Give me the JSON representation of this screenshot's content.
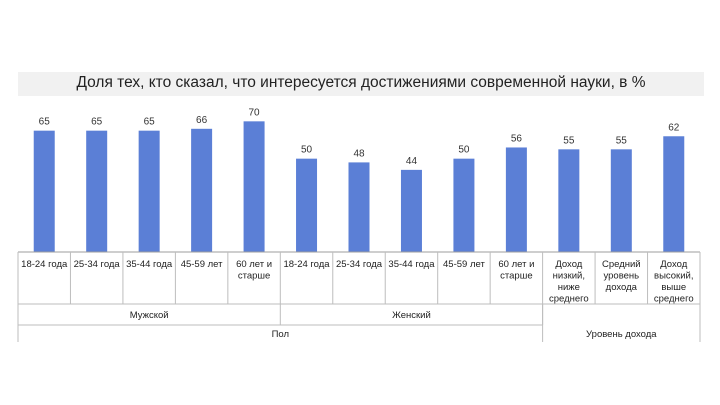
{
  "chart_data": {
    "type": "bar",
    "title": "Доля тех, кто сказал, что интересуется достижениями современной науки, в %",
    "categories": [
      [
        "18-24 года"
      ],
      [
        "25-34 года"
      ],
      [
        "35-44 года"
      ],
      [
        "45-59 лет"
      ],
      [
        "60 лет и",
        "старше"
      ],
      [
        "18-24 года"
      ],
      [
        "25-34 года"
      ],
      [
        "35-44 года"
      ],
      [
        "45-59 лет"
      ],
      [
        "60 лет и",
        "старше"
      ],
      [
        "Доход",
        "низкий,",
        "ниже",
        "среднего"
      ],
      [
        "Средний",
        "уровень",
        "дохода"
      ],
      [
        "Доход",
        "высокий,",
        "выше",
        "среднего"
      ]
    ],
    "values": [
      65,
      65,
      65,
      66,
      70,
      50,
      48,
      44,
      50,
      56,
      55,
      55,
      62
    ],
    "groups_level1": [
      {
        "label": "Мужской",
        "start": 0,
        "end": 4
      },
      {
        "label": "Женский",
        "start": 5,
        "end": 9
      }
    ],
    "groups_level2": [
      {
        "label": "Пол",
        "start": 0,
        "end": 9
      },
      {
        "label": "Уровень дохода",
        "start": 10,
        "end": 12
      }
    ],
    "ylim": [
      0,
      75
    ],
    "bar_color": "#5b7fd6",
    "grid": false,
    "legend": "none"
  }
}
